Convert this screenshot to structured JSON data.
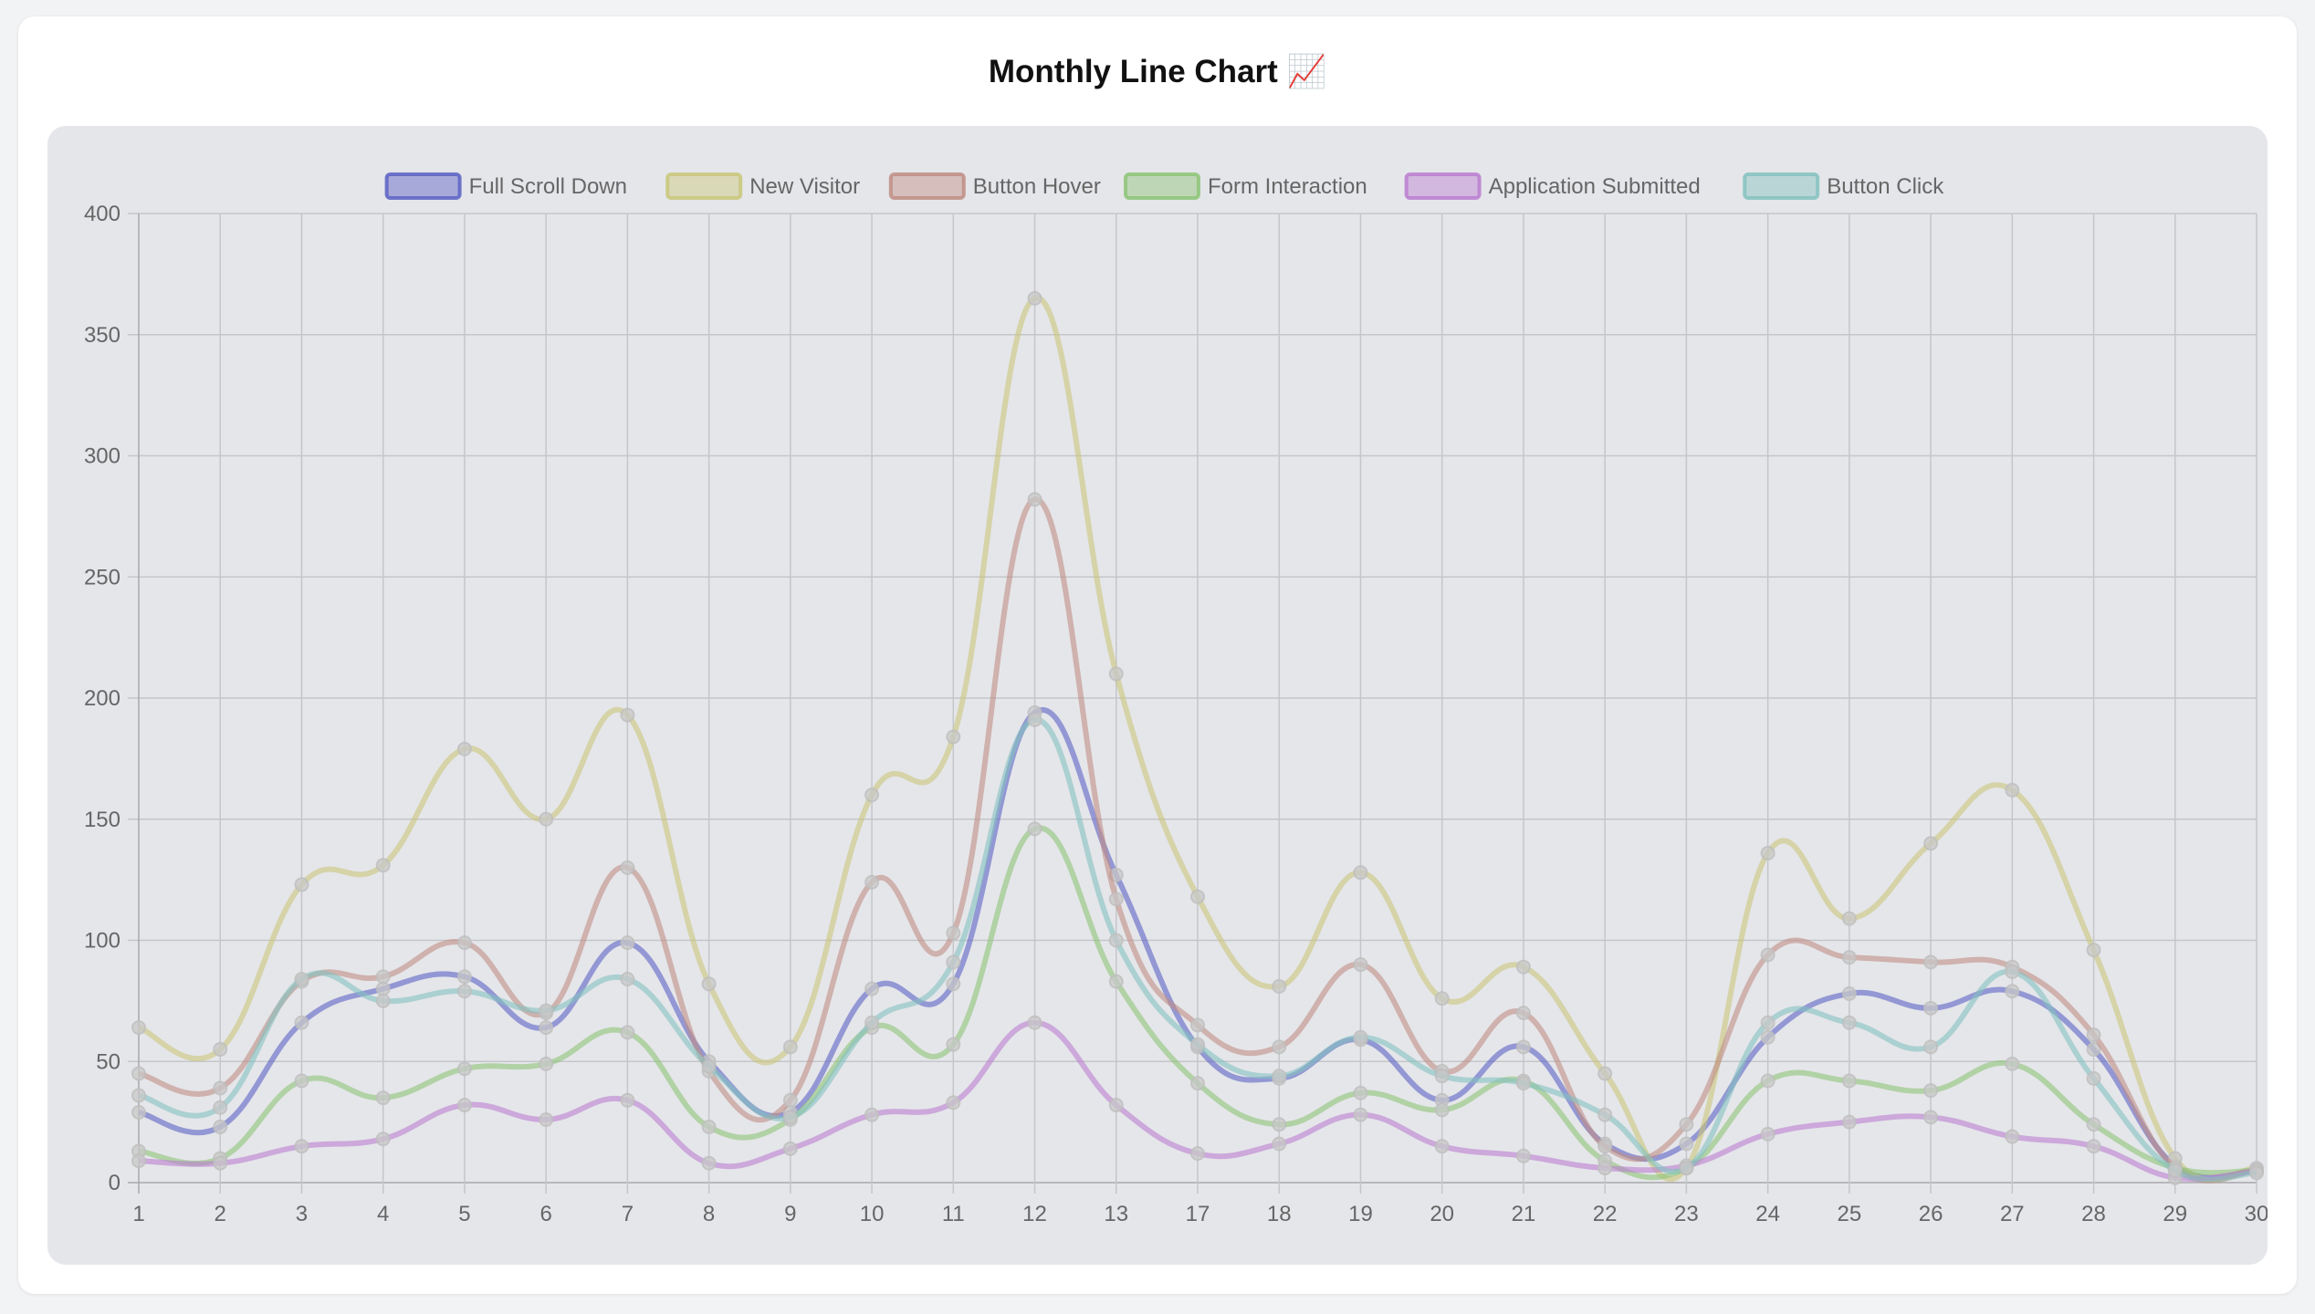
{
  "title": "Monthly Line Chart 📈",
  "chart_data": {
    "type": "line",
    "title": "Monthly Line Chart 📈",
    "xlabel": "",
    "ylabel": "",
    "ylim": [
      0,
      400
    ],
    "yticks": [
      0,
      50,
      100,
      150,
      200,
      250,
      300,
      350,
      400
    ],
    "grid": true,
    "legend": "top-center",
    "categories": [
      "1",
      "2",
      "3",
      "4",
      "5",
      "6",
      "7",
      "8",
      "9",
      "10",
      "11",
      "12",
      "13",
      "17",
      "18",
      "19",
      "20",
      "21",
      "22",
      "23",
      "24",
      "25",
      "26",
      "27",
      "28",
      "29",
      "30"
    ],
    "series": [
      {
        "name": "Full Scroll Down",
        "color": "#5b62c4",
        "values": [
          29,
          23,
          66,
          80,
          85,
          64,
          99,
          50,
          29,
          80,
          82,
          194,
          127,
          56,
          43,
          59,
          34,
          56,
          16,
          16,
          60,
          78,
          72,
          79,
          55,
          7,
          5
        ]
      },
      {
        "name": "New Visitor",
        "color": "#c9c77a",
        "values": [
          64,
          55,
          123,
          131,
          179,
          150,
          193,
          82,
          56,
          160,
          184,
          365,
          210,
          118,
          81,
          128,
          76,
          89,
          45,
          6,
          136,
          109,
          140,
          162,
          96,
          10,
          6
        ]
      },
      {
        "name": "Button Hover",
        "color": "#c08d84",
        "values": [
          45,
          39,
          83,
          85,
          99,
          70,
          130,
          46,
          34,
          124,
          103,
          282,
          117,
          65,
          56,
          90,
          46,
          70,
          15,
          24,
          94,
          93,
          91,
          89,
          61,
          6,
          5
        ]
      },
      {
        "name": "Form Interaction",
        "color": "#8dc477",
        "values": [
          13,
          10,
          42,
          35,
          47,
          49,
          62,
          23,
          26,
          64,
          57,
          146,
          83,
          41,
          24,
          37,
          30,
          42,
          9,
          6,
          42,
          42,
          38,
          49,
          24,
          6,
          5
        ]
      },
      {
        "name": "Application Submitted",
        "color": "#bb7ed0",
        "values": [
          9,
          8,
          15,
          18,
          32,
          26,
          34,
          8,
          14,
          28,
          33,
          66,
          32,
          12,
          16,
          28,
          15,
          11,
          6,
          7,
          20,
          25,
          27,
          19,
          15,
          2,
          5
        ]
      },
      {
        "name": "Button Click",
        "color": "#84c2bf",
        "values": [
          36,
          31,
          84,
          75,
          79,
          71,
          84,
          48,
          27,
          66,
          91,
          191,
          100,
          57,
          44,
          60,
          44,
          41,
          28,
          6,
          66,
          66,
          56,
          87,
          43,
          5,
          4
        ]
      }
    ]
  }
}
